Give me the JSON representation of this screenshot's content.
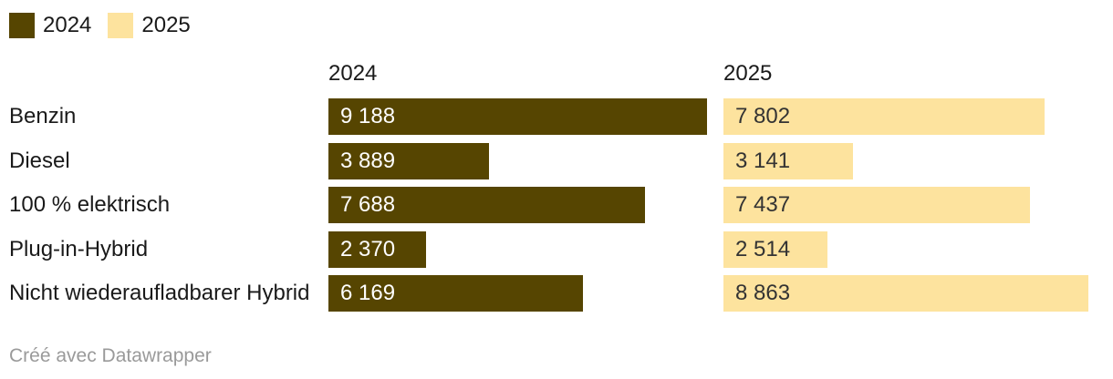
{
  "legend": {
    "items": [
      {
        "label": "2024",
        "color": "#564501"
      },
      {
        "label": "2025",
        "color": "#FDE39E"
      }
    ]
  },
  "chart_data": {
    "type": "bar",
    "orientation": "horizontal",
    "layout": "split-columns",
    "categories": [
      "Benzin",
      "Diesel",
      "100 % elektrisch",
      "Plug-in-Hybrid",
      "Nicht wiederaufladbarer Hybrid"
    ],
    "series": [
      {
        "name": "2024",
        "color": "#564501",
        "value_text_color": "#ffffff",
        "values": [
          9188,
          3889,
          7688,
          2370,
          6169
        ]
      },
      {
        "name": "2025",
        "color": "#FDE39E",
        "value_text_color": "#333333",
        "values": [
          7802,
          3141,
          7437,
          2514,
          8863
        ]
      }
    ],
    "value_labels": {
      "2024": [
        "9 188",
        "3 889",
        "7 688",
        "2 370",
        "6 169"
      ],
      "2025": [
        "7 802",
        "3 141",
        "7 437",
        "2 514",
        "8 863"
      ]
    },
    "xmax": 9188,
    "grid": false,
    "legend_position": "top-left"
  },
  "footer": {
    "attribution": "Créé avec Datawrapper"
  }
}
